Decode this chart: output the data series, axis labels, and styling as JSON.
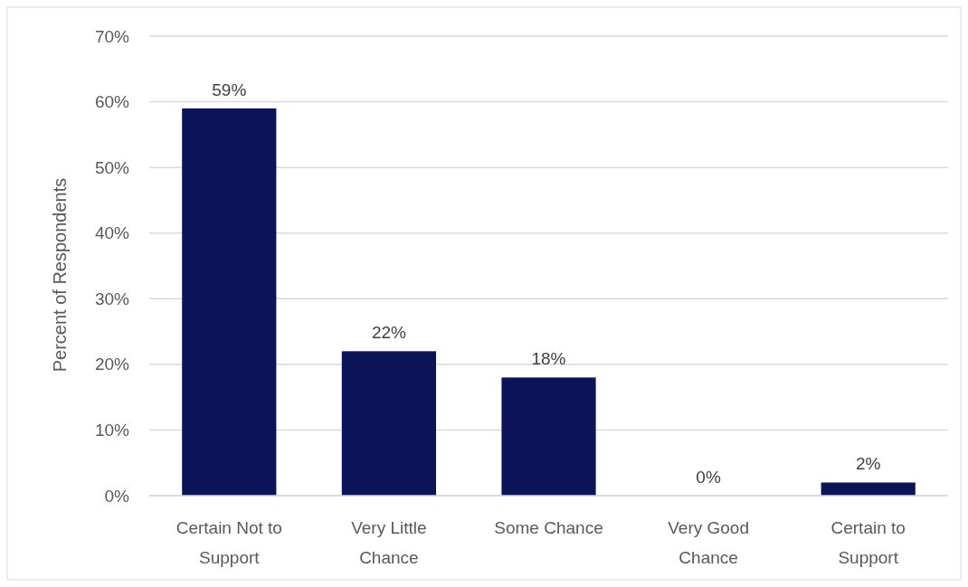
{
  "chart_data": {
    "type": "bar",
    "categories": [
      "Certain Not to Support",
      "Very Little Chance",
      "Some Chance",
      "Very Good Chance",
      "Certain to Support"
    ],
    "values": [
      59,
      22,
      18,
      0,
      2
    ],
    "value_labels": [
      "59%",
      "22%",
      "18%",
      "0%",
      "2%"
    ],
    "color": "#0c1458",
    "ylabel": "Percent of Respondents",
    "ylim": [
      0,
      70
    ],
    "yticks": [
      {
        "value": 0,
        "label": "0%"
      },
      {
        "value": 10,
        "label": "10%"
      },
      {
        "value": 20,
        "label": "20%"
      },
      {
        "value": 30,
        "label": "30%"
      },
      {
        "value": 40,
        "label": "40%"
      },
      {
        "value": 50,
        "label": "50%"
      },
      {
        "value": 60,
        "label": "60%"
      },
      {
        "value": 70,
        "label": "70%"
      }
    ],
    "grid": "y"
  }
}
